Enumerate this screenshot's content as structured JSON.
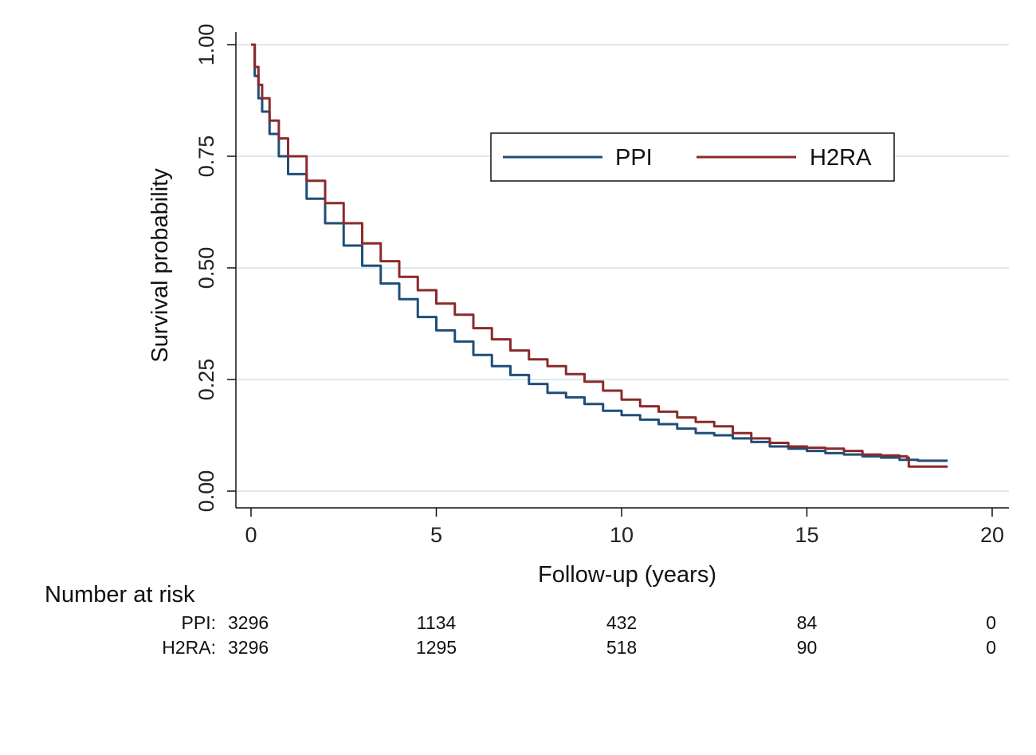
{
  "chart_data": {
    "type": "line",
    "xlabel": "Follow-up (years)",
    "ylabel": "Survival probability",
    "xlim": [
      0,
      20
    ],
    "ylim": [
      0,
      1
    ],
    "x_ticks": [
      "0",
      "5",
      "10",
      "15",
      "20"
    ],
    "y_ticks": [
      "0.00",
      "0.25",
      "0.50",
      "0.75",
      "1.00"
    ],
    "grid": "horizontal",
    "legend_position": "top-right",
    "series": [
      {
        "name": "PPI",
        "color": "#1f4e79",
        "points": [
          [
            0,
            1.0
          ],
          [
            0.1,
            0.93
          ],
          [
            0.2,
            0.88
          ],
          [
            0.3,
            0.85
          ],
          [
            0.5,
            0.8
          ],
          [
            0.75,
            0.75
          ],
          [
            1,
            0.71
          ],
          [
            1.5,
            0.655
          ],
          [
            2,
            0.6
          ],
          [
            2.5,
            0.55
          ],
          [
            3,
            0.505
          ],
          [
            3.5,
            0.465
          ],
          [
            4,
            0.43
          ],
          [
            4.5,
            0.39
          ],
          [
            5,
            0.36
          ],
          [
            5.5,
            0.335
          ],
          [
            6,
            0.305
          ],
          [
            6.5,
            0.28
          ],
          [
            7,
            0.26
          ],
          [
            7.5,
            0.24
          ],
          [
            8,
            0.22
          ],
          [
            8.5,
            0.21
          ],
          [
            9,
            0.195
          ],
          [
            9.5,
            0.18
          ],
          [
            10,
            0.17
          ],
          [
            10.5,
            0.16
          ],
          [
            11,
            0.15
          ],
          [
            11.5,
            0.14
          ],
          [
            12,
            0.13
          ],
          [
            12.5,
            0.125
          ],
          [
            13,
            0.118
          ],
          [
            13.5,
            0.11
          ],
          [
            14,
            0.1
          ],
          [
            14.5,
            0.095
          ],
          [
            15,
            0.09
          ],
          [
            15.5,
            0.085
          ],
          [
            16,
            0.082
          ],
          [
            16.5,
            0.078
          ],
          [
            17,
            0.075
          ],
          [
            17.5,
            0.07
          ],
          [
            18,
            0.068
          ],
          [
            18.5,
            0.068
          ],
          [
            18.8,
            0.068
          ]
        ]
      },
      {
        "name": "H2RA",
        "color": "#8b2a2a",
        "points": [
          [
            0,
            1.0
          ],
          [
            0.1,
            0.95
          ],
          [
            0.2,
            0.91
          ],
          [
            0.3,
            0.88
          ],
          [
            0.5,
            0.83
          ],
          [
            0.75,
            0.79
          ],
          [
            1,
            0.75
          ],
          [
            1.5,
            0.695
          ],
          [
            2,
            0.645
          ],
          [
            2.5,
            0.6
          ],
          [
            3,
            0.555
          ],
          [
            3.5,
            0.515
          ],
          [
            4,
            0.48
          ],
          [
            4.5,
            0.45
          ],
          [
            5,
            0.42
          ],
          [
            5.5,
            0.395
          ],
          [
            6,
            0.365
          ],
          [
            6.5,
            0.34
          ],
          [
            7,
            0.315
          ],
          [
            7.5,
            0.295
          ],
          [
            8,
            0.28
          ],
          [
            8.5,
            0.262
          ],
          [
            9,
            0.245
          ],
          [
            9.5,
            0.225
          ],
          [
            10,
            0.205
          ],
          [
            10.5,
            0.19
          ],
          [
            11,
            0.178
          ],
          [
            11.5,
            0.165
          ],
          [
            12,
            0.155
          ],
          [
            12.5,
            0.145
          ],
          [
            13,
            0.13
          ],
          [
            13.5,
            0.118
          ],
          [
            14,
            0.108
          ],
          [
            14.5,
            0.1
          ],
          [
            15,
            0.097
          ],
          [
            15.5,
            0.095
          ],
          [
            16,
            0.09
          ],
          [
            16.5,
            0.082
          ],
          [
            17,
            0.08
          ],
          [
            17.5,
            0.078
          ],
          [
            17.7,
            0.075
          ],
          [
            17.75,
            0.055
          ],
          [
            18,
            0.055
          ],
          [
            18.5,
            0.055
          ],
          [
            18.8,
            0.055
          ]
        ]
      }
    ],
    "risk_table": {
      "heading": "Number at risk",
      "x_positions": [
        0,
        5,
        10,
        15,
        20
      ],
      "rows": [
        {
          "label": "PPI:",
          "values": [
            "3296",
            "1134",
            "432",
            "84",
            "0"
          ]
        },
        {
          "label": "H2RA:",
          "values": [
            "3296",
            "1295",
            "518",
            "90",
            "0"
          ]
        }
      ]
    }
  }
}
